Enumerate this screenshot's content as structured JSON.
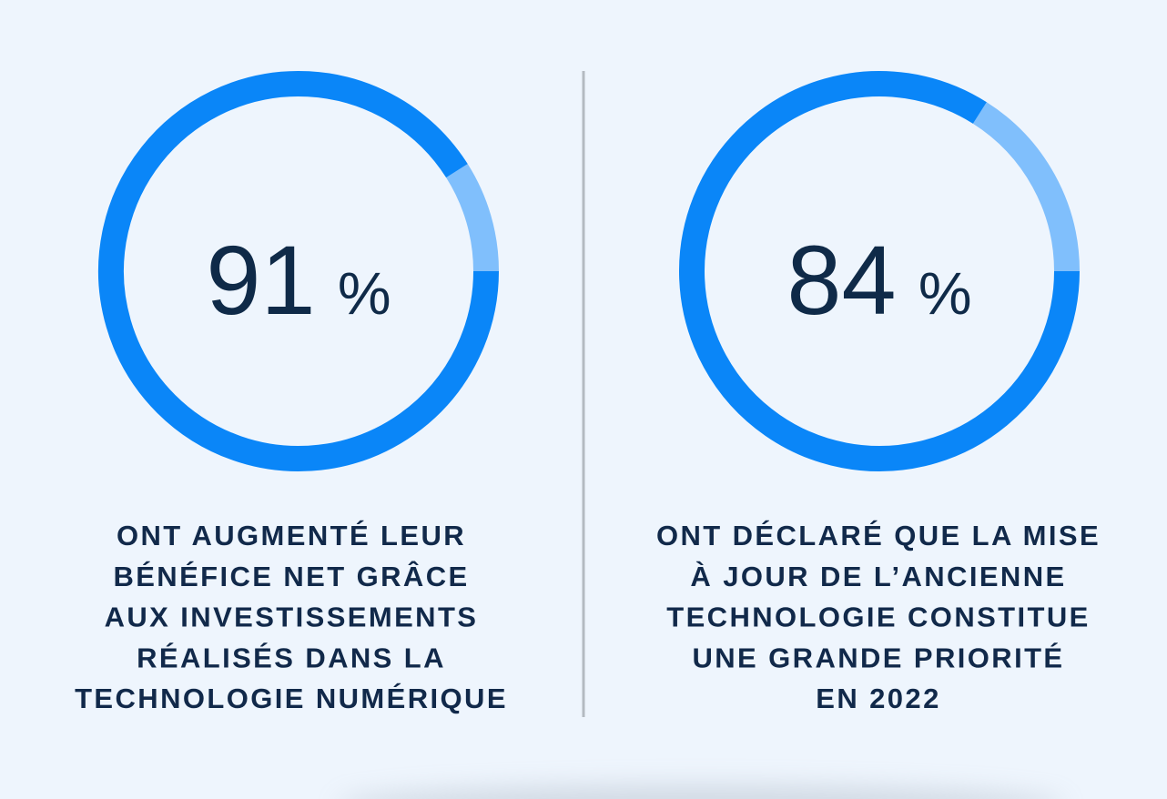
{
  "chart_data": [
    {
      "type": "donut",
      "values": [
        91
      ],
      "value_labels": [
        "91 %"
      ],
      "range": [
        0,
        100
      ],
      "color": "#0a86f8",
      "remainder_color": "#80bffc",
      "caption": [
        "ONT AUGMENTÉ LEUR",
        "BÉNÉFICE NET GRÂCE",
        "AUX INVESTISSEMENTS",
        "RÉALISÉS DANS LA",
        "TECHNOLOGIE NUMÉRIQUE"
      ]
    },
    {
      "type": "donut",
      "values": [
        84
      ],
      "value_labels": [
        "84 %"
      ],
      "range": [
        0,
        100
      ],
      "color": "#0a86f8",
      "remainder_color": "#80bffc",
      "caption": [
        "ONT DÉCLARÉ QUE LA MISE",
        "À JOUR DE L’ANCIENNE",
        "TECHNOLOGIE CONSTITUE",
        "UNE GRANDE PRIORITÉ",
        "EN 2022"
      ]
    }
  ]
}
